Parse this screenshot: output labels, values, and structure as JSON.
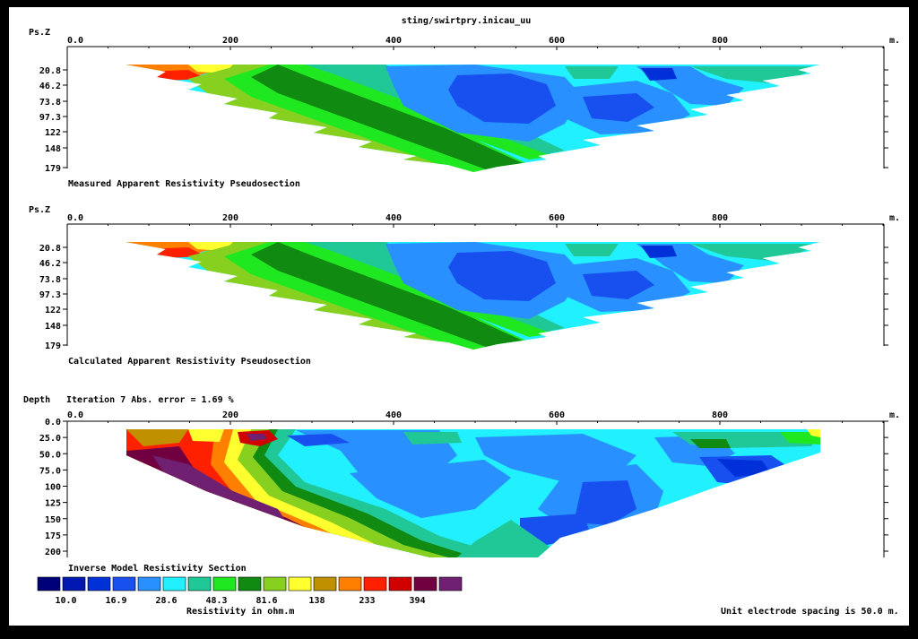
{
  "file_title": "sting/swirtpry.inicau_uu",
  "panels": [
    {
      "id": "measured",
      "ylabel": "Ps.Z",
      "caption": "Measured Apparent Resistivity Pseudosection",
      "x_ticks": [
        "0.0",
        "200",
        "400",
        "600",
        "800"
      ],
      "x_unit": "m.",
      "y_ticks": [
        "20.8",
        "46.2",
        "73.8",
        "97.3",
        "122",
        "148",
        "179"
      ]
    },
    {
      "id": "calculated",
      "ylabel": "Ps.Z",
      "caption": "Calculated Apparent Resistivity Pseudosection",
      "x_ticks": [
        "0.0",
        "200",
        "400",
        "600",
        "800"
      ],
      "x_unit": "m.",
      "y_ticks": [
        "20.8",
        "46.2",
        "73.8",
        "97.3",
        "122",
        "148",
        "179"
      ]
    },
    {
      "id": "inverse",
      "ylabel": "Depth",
      "iteration_text": "Iteration 7 Abs. error = 1.69 %",
      "caption": "Inverse Model Resistivity Section",
      "x_ticks": [
        "0.0",
        "200",
        "400",
        "600",
        "800"
      ],
      "x_unit": "m.",
      "y_ticks": [
        "0.0",
        "25.0",
        "50.0",
        "75.0",
        "100",
        "125",
        "150",
        "175",
        "200"
      ]
    }
  ],
  "chart_data": [
    {
      "type": "heatmap",
      "title": "Measured Apparent Resistivity Pseudosection",
      "ylabel": "Ps.Z",
      "x_unit": "m",
      "xlim": [
        0,
        1000
      ],
      "x_ticks": [
        0,
        200,
        400,
        600,
        800
      ],
      "y_ticks": [
        20.8,
        46.2,
        73.8,
        97.3,
        122,
        148,
        179
      ],
      "y_inverted": true
    },
    {
      "type": "heatmap",
      "title": "Calculated Apparent Resistivity Pseudosection",
      "ylabel": "Ps.Z",
      "x_unit": "m",
      "xlim": [
        0,
        1000
      ],
      "x_ticks": [
        0,
        200,
        400,
        600,
        800
      ],
      "y_ticks": [
        20.8,
        46.2,
        73.8,
        97.3,
        122,
        148,
        179
      ],
      "y_inverted": true
    },
    {
      "type": "heatmap",
      "title": "Inverse Model Resistivity Section",
      "subtitle": "Iteration 7 Abs. error = 1.69 %",
      "ylabel": "Depth",
      "x_unit": "m",
      "xlim": [
        0,
        1000
      ],
      "ylim": [
        0,
        200
      ],
      "x_ticks": [
        0,
        200,
        400,
        600,
        800
      ],
      "y_ticks": [
        0,
        25,
        50,
        75,
        100,
        125,
        150,
        175,
        200
      ],
      "y_inverted": true,
      "abs_error_percent": 1.69,
      "iteration": 7
    }
  ],
  "legend": {
    "title": "Resistivity in ohm.m",
    "colors": [
      "#00007a",
      "#0018b0",
      "#0030d8",
      "#1850f0",
      "#2890ff",
      "#20f0ff",
      "#20c898",
      "#20e820",
      "#108a10",
      "#88d020",
      "#ffff30",
      "#c09000",
      "#ff8000",
      "#ff2000",
      "#d00000",
      "#700040",
      "#702070"
    ],
    "labels": [
      "10.0",
      "16.9",
      "28.6",
      "48.3",
      "81.6",
      "138",
      "233",
      "394"
    ]
  },
  "footer": {
    "spacing_text": "Unit electrode spacing is 50.0 m."
  }
}
